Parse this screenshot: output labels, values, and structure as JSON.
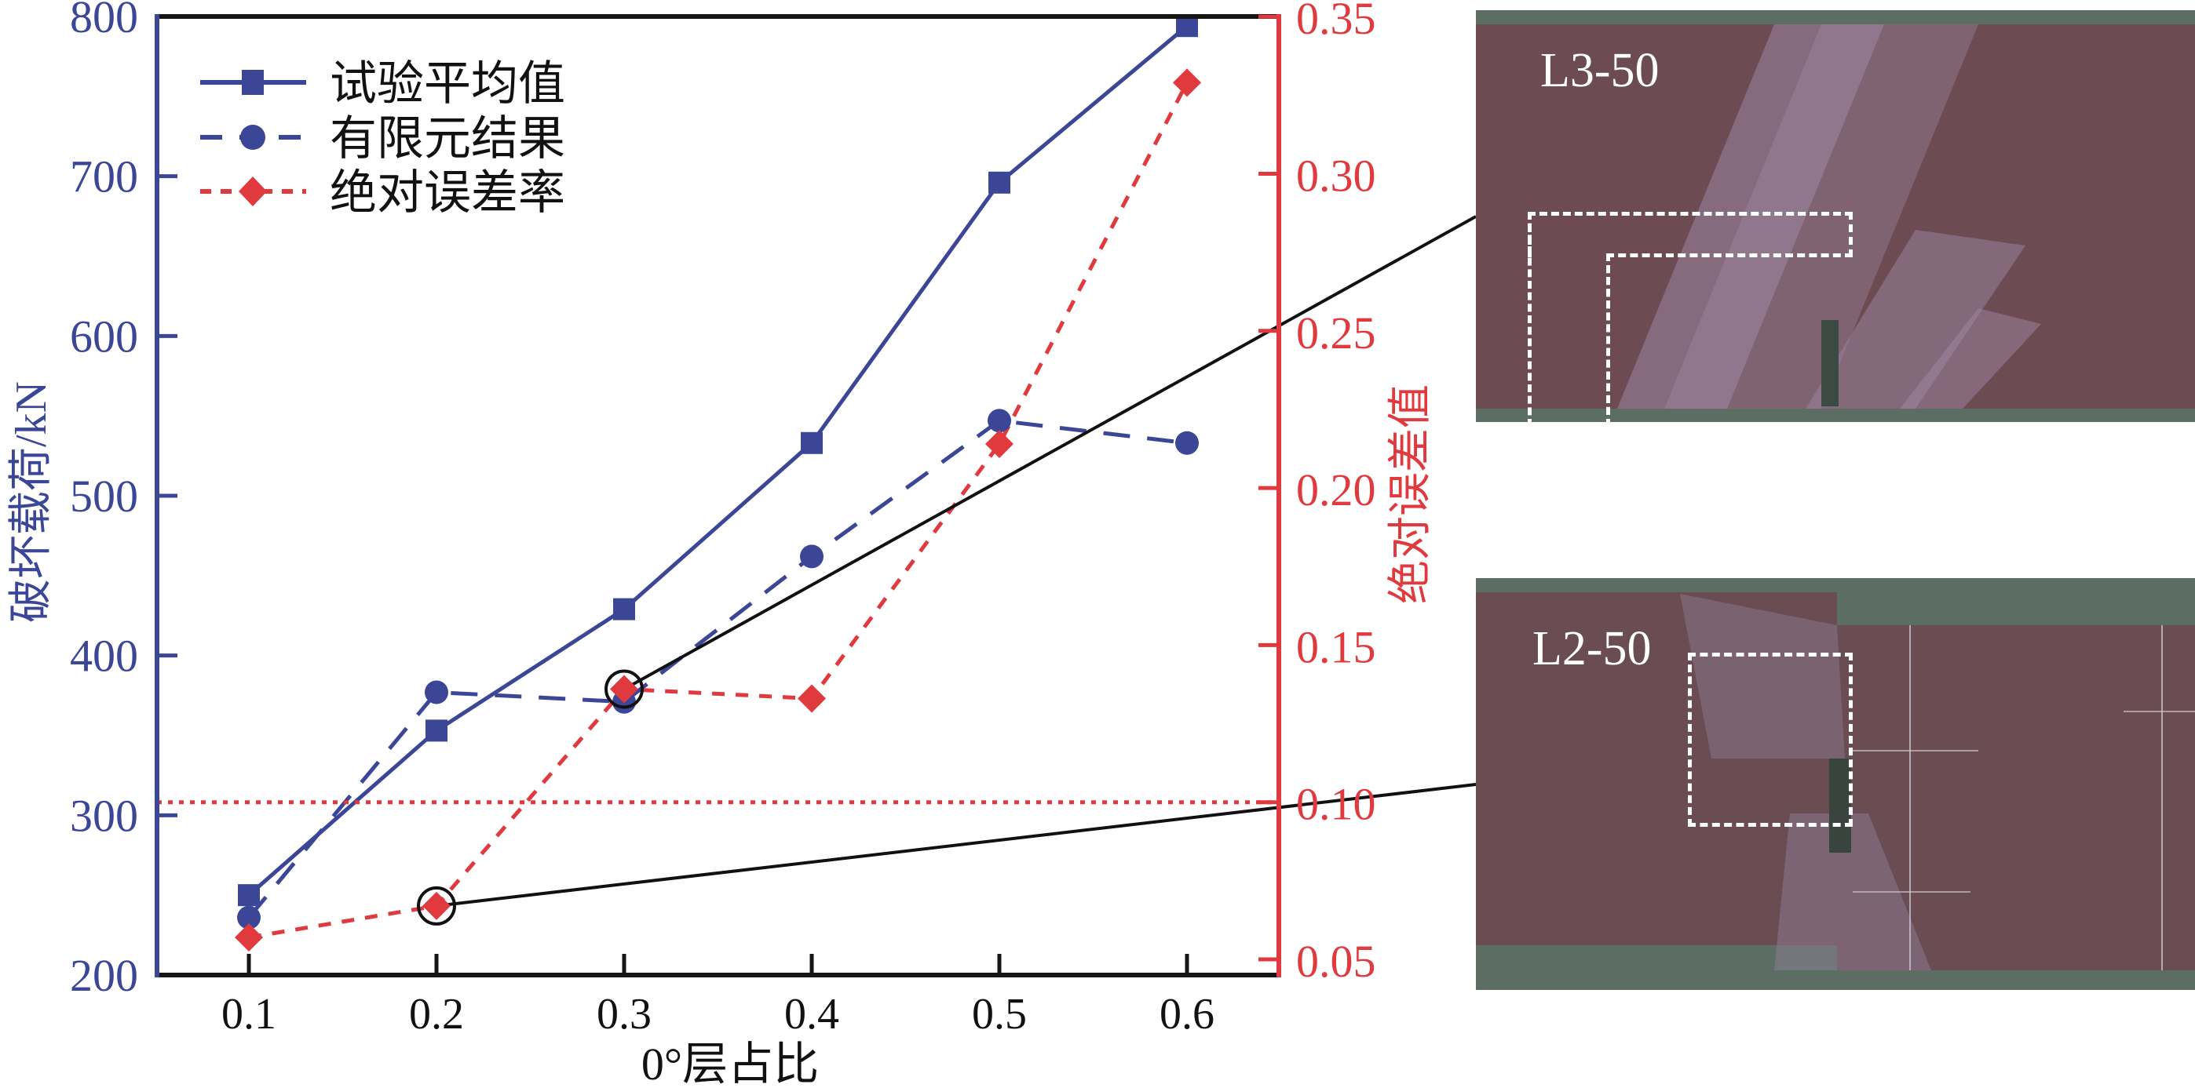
{
  "chart_data": {
    "type": "line",
    "xlabel": "0°层占比",
    "ylabel_left": "破坏载荷/kN",
    "ylabel_right": "绝对误差值",
    "x": [
      0.1,
      0.2,
      0.3,
      0.4,
      0.5,
      0.6
    ],
    "x_tick_labels": [
      "0.1",
      "0.2",
      "0.3",
      "0.4",
      "0.5",
      "0.6"
    ],
    "xlim": [
      0.05,
      0.65
    ],
    "ylim_left": [
      200,
      800
    ],
    "y_left_ticks": [
      "200",
      "300",
      "400",
      "500",
      "600",
      "700",
      "800"
    ],
    "ylim_right": [
      0.045,
      0.35
    ],
    "y_right_ticks": [
      "0.05",
      "0.10",
      "0.15",
      "0.20",
      "0.25",
      "0.30",
      "0.35"
    ],
    "grid": false,
    "legend_position": "top-left",
    "series": [
      {
        "name": "试验平均值",
        "axis": "left",
        "marker": "square",
        "line": "solid",
        "color": "#3b4796",
        "values": [
          250,
          353,
          429,
          533,
          696,
          794
        ]
      },
      {
        "name": "有限元结果",
        "axis": "left",
        "marker": "circle",
        "line": "dashed",
        "color": "#3b4796",
        "values": [
          236,
          377,
          371,
          462,
          547,
          533
        ]
      },
      {
        "name": "绝对误差率",
        "axis": "right",
        "marker": "diamond",
        "line": "dotted",
        "color": "#e0393e",
        "values": [
          0.057,
          0.067,
          0.136,
          0.133,
          0.214,
          0.329
        ]
      }
    ],
    "reference_line": {
      "axis": "right",
      "value": 0.1,
      "color": "#e0393e",
      "style": "dotted"
    },
    "highlighted_points": [
      {
        "x": 0.3,
        "series": "绝对误差率",
        "linked_photo": "L3-50"
      },
      {
        "x": 0.2,
        "series": "绝对误差率",
        "linked_photo": "L2-50"
      }
    ]
  },
  "photos": [
    {
      "label": "L3-50"
    },
    {
      "label": "L2-50"
    }
  ],
  "colors": {
    "blue": "#3b4796",
    "red": "#e0393e",
    "axis_black": "#151515",
    "specimen": "#6c4c52",
    "mat": "#5c6e64"
  }
}
